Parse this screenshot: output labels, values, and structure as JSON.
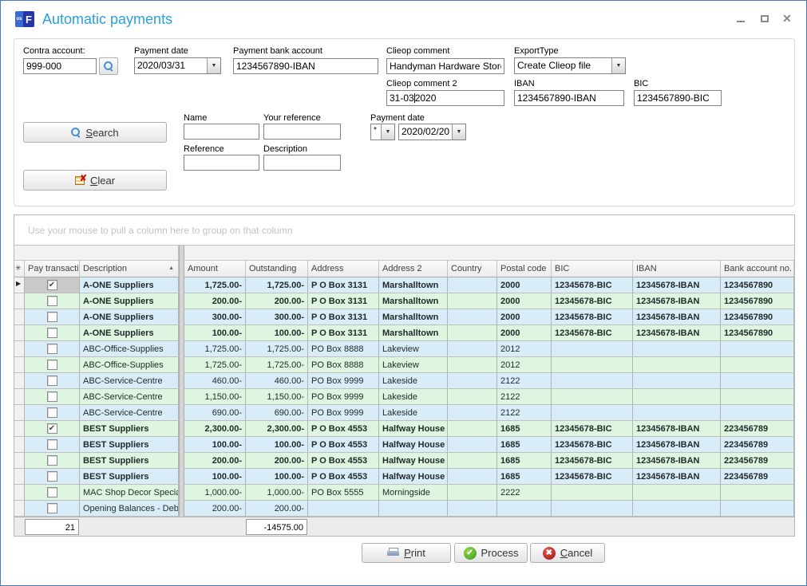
{
  "window": {
    "title": "Automatic payments",
    "app_icon": {
      "left": "os",
      "right": "F"
    },
    "controls": [
      "minimize",
      "maximize",
      "close"
    ]
  },
  "icons": {
    "sort_asc": "▲",
    "row_arrow": "▶",
    "header_asterisk": "✳",
    "check": "✔",
    "dropdown": "▼"
  },
  "colors": {
    "title_blue": "#2aa0dc",
    "row_blue": "#d9edf8",
    "row_green": "#def5df",
    "process_green": "#3d9e22",
    "cancel_red": "#9e1414"
  },
  "form": {
    "contra_account": {
      "label": "Contra account:",
      "value": "999-000"
    },
    "payment_date": {
      "label": "Payment date",
      "value": "2020/03/31"
    },
    "payment_bank_account": {
      "label": "Payment bank account",
      "value": "1234567890-IBAN"
    },
    "clieop_comment": {
      "label": "Clieop comment",
      "value": "Handyman Hardware Store"
    },
    "export_type": {
      "label": "ExportType",
      "value": "Create Clieop file"
    },
    "clieop_comment2": {
      "label": "Clieop comment 2",
      "before": "31-03",
      "after": "2020"
    },
    "iban": {
      "label": "IBAN",
      "value": "1234567890-IBAN"
    },
    "bic": {
      "label": "BIC",
      "value": "1234567890-BIC"
    }
  },
  "search": {
    "search_button": {
      "accel": "S",
      "rest": "earch"
    },
    "clear_button": {
      "accel": "C",
      "rest": "lear"
    },
    "name": {
      "label": "Name",
      "value": ""
    },
    "your_reference": {
      "label": "Your reference",
      "value": ""
    },
    "payment_date": {
      "label": "Payment date",
      "operator": "*",
      "value": "2020/02/20"
    },
    "reference": {
      "label": "Reference",
      "value": ""
    },
    "description": {
      "label": "Description",
      "value": ""
    }
  },
  "grid": {
    "group_hint": "Use your mouse to pull a column here to group on that column",
    "columns": [
      {
        "key": "pay",
        "label": "Pay transaction"
      },
      {
        "key": "description",
        "label": "Description",
        "sort": "asc"
      },
      {
        "key": "amount",
        "label": "Amount"
      },
      {
        "key": "outstanding",
        "label": "Outstanding"
      },
      {
        "key": "address",
        "label": "Address"
      },
      {
        "key": "address2",
        "label": "Address 2"
      },
      {
        "key": "country",
        "label": "Country"
      },
      {
        "key": "postal",
        "label": "Postal code"
      },
      {
        "key": "bic",
        "label": "BIC"
      },
      {
        "key": "iban",
        "label": "IBAN"
      },
      {
        "key": "bank",
        "label": "Bank account no."
      }
    ],
    "rows": [
      {
        "focused": true,
        "checked": true,
        "bold": true,
        "description": "A-ONE Suppliers",
        "amount": "1,725.00-",
        "outstanding": "1,725.00-",
        "address": "P O Box 3131",
        "address2": "Marshalltown",
        "country": "",
        "postal": "2000",
        "bic": "12345678-BIC",
        "iban": "12345678-IBAN",
        "bank": "1234567890"
      },
      {
        "focused": false,
        "checked": false,
        "bold": true,
        "description": "A-ONE Suppliers",
        "amount": "200.00-",
        "outstanding": "200.00-",
        "address": "P O Box 3131",
        "address2": "Marshalltown",
        "country": "",
        "postal": "2000",
        "bic": "12345678-BIC",
        "iban": "12345678-IBAN",
        "bank": "1234567890"
      },
      {
        "focused": false,
        "checked": false,
        "bold": true,
        "description": "A-ONE Suppliers",
        "amount": "300.00-",
        "outstanding": "300.00-",
        "address": "P O Box 3131",
        "address2": "Marshalltown",
        "country": "",
        "postal": "2000",
        "bic": "12345678-BIC",
        "iban": "12345678-IBAN",
        "bank": "1234567890"
      },
      {
        "focused": false,
        "checked": false,
        "bold": true,
        "description": "A-ONE Suppliers",
        "amount": "100.00-",
        "outstanding": "100.00-",
        "address": "P O Box 3131",
        "address2": "Marshalltown",
        "country": "",
        "postal": "2000",
        "bic": "12345678-BIC",
        "iban": "12345678-IBAN",
        "bank": "1234567890"
      },
      {
        "focused": false,
        "checked": false,
        "bold": false,
        "description": "ABC-Office-Supplies",
        "amount": "1,725.00-",
        "outstanding": "1,725.00-",
        "address": "PO Box 8888",
        "address2": "Lakeview",
        "country": "",
        "postal": "2012",
        "bic": "",
        "iban": "",
        "bank": ""
      },
      {
        "focused": false,
        "checked": false,
        "bold": false,
        "description": "ABC-Office-Supplies",
        "amount": "1,725.00-",
        "outstanding": "1,725.00-",
        "address": "PO Box 8888",
        "address2": "Lakeview",
        "country": "",
        "postal": "2012",
        "bic": "",
        "iban": "",
        "bank": ""
      },
      {
        "focused": false,
        "checked": false,
        "bold": false,
        "description": "ABC-Service-Centre",
        "amount": "460.00-",
        "outstanding": "460.00-",
        "address": "PO Box 9999",
        "address2": "Lakeside",
        "country": "",
        "postal": "2122",
        "bic": "",
        "iban": "",
        "bank": ""
      },
      {
        "focused": false,
        "checked": false,
        "bold": false,
        "description": "ABC-Service-Centre",
        "amount": "1,150.00-",
        "outstanding": "1,150.00-",
        "address": "PO Box 9999",
        "address2": "Lakeside",
        "country": "",
        "postal": "2122",
        "bic": "",
        "iban": "",
        "bank": ""
      },
      {
        "focused": false,
        "checked": false,
        "bold": false,
        "description": "ABC-Service-Centre",
        "amount": "690.00-",
        "outstanding": "690.00-",
        "address": "PO Box 9999",
        "address2": "Lakeside",
        "country": "",
        "postal": "2122",
        "bic": "",
        "iban": "",
        "bank": ""
      },
      {
        "focused": false,
        "checked": true,
        "bold": true,
        "description": "BEST Suppliers",
        "amount": "2,300.00-",
        "outstanding": "2,300.00-",
        "address": "P O Box 4553",
        "address2": "Halfway House",
        "country": "",
        "postal": "1685",
        "bic": "12345678-BIC",
        "iban": "12345678-IBAN",
        "bank": "223456789"
      },
      {
        "focused": false,
        "checked": false,
        "bold": true,
        "description": "BEST Suppliers",
        "amount": "100.00-",
        "outstanding": "100.00-",
        "address": "P O Box 4553",
        "address2": "Halfway House",
        "country": "",
        "postal": "1685",
        "bic": "12345678-BIC",
        "iban": "12345678-IBAN",
        "bank": "223456789"
      },
      {
        "focused": false,
        "checked": false,
        "bold": true,
        "description": "BEST Suppliers",
        "amount": "200.00-",
        "outstanding": "200.00-",
        "address": "P O Box 4553",
        "address2": "Halfway House",
        "country": "",
        "postal": "1685",
        "bic": "12345678-BIC",
        "iban": "12345678-IBAN",
        "bank": "223456789"
      },
      {
        "focused": false,
        "checked": false,
        "bold": true,
        "description": "BEST Suppliers",
        "amount": "100.00-",
        "outstanding": "100.00-",
        "address": "P O Box 4553",
        "address2": "Halfway House",
        "country": "",
        "postal": "1685",
        "bic": "12345678-BIC",
        "iban": "12345678-IBAN",
        "bank": "223456789"
      },
      {
        "focused": false,
        "checked": false,
        "bold": false,
        "description": "MAC Shop Decor Special",
        "amount": "1,000.00-",
        "outstanding": "1,000.00-",
        "address": "PO Box 5555",
        "address2": "Morningside",
        "country": "",
        "postal": "2222",
        "bic": "",
        "iban": "",
        "bank": ""
      },
      {
        "focused": false,
        "checked": false,
        "bold": false,
        "description": "Opening Balances - Debto",
        "amount": "200.00-",
        "outstanding": "200.00-",
        "address": "",
        "address2": "",
        "country": "",
        "postal": "",
        "bic": "",
        "iban": "",
        "bank": ""
      }
    ],
    "footer": {
      "count": "21",
      "outstanding_total": "-14575.00"
    }
  },
  "actions": {
    "print": {
      "accel": "P",
      "rest": "rint"
    },
    "process": {
      "label": "Process"
    },
    "cancel": {
      "accel": "C",
      "rest": "ancel"
    }
  }
}
